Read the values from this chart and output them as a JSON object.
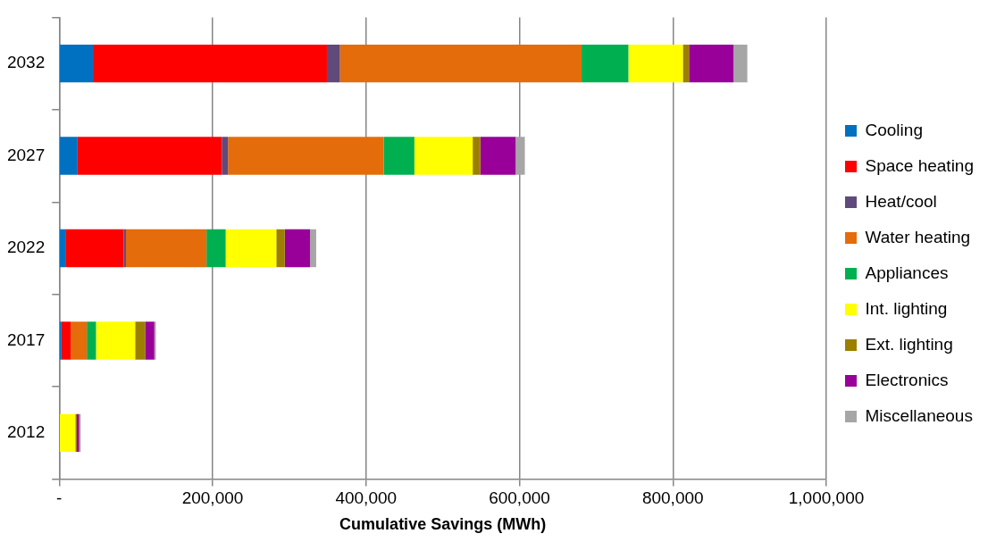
{
  "chart_data": {
    "type": "bar",
    "orientation": "horizontal",
    "stacked": true,
    "xlabel": "Cumulative Savings (MWh)",
    "categories": [
      "2032",
      "2027",
      "2022",
      "2017",
      "2012"
    ],
    "series": [
      {
        "name": "Cooling",
        "color": "#0070c0",
        "values": [
          44000,
          24000,
          8000,
          3000,
          0
        ]
      },
      {
        "name": "Space heating",
        "color": "#ff0000",
        "values": [
          305000,
          188000,
          76000,
          12000,
          0
        ]
      },
      {
        "name": "Heat/cool",
        "color": "#604a7b",
        "values": [
          17000,
          8000,
          3000,
          0,
          0
        ]
      },
      {
        "name": "Water heating",
        "color": "#e46c0a",
        "values": [
          315000,
          203000,
          105000,
          21000,
          0
        ]
      },
      {
        "name": "Appliances",
        "color": "#00b050",
        "values": [
          61000,
          40000,
          25000,
          12000,
          0
        ]
      },
      {
        "name": "Int. lighting",
        "color": "#ffff00",
        "values": [
          71000,
          76000,
          66000,
          51000,
          21000
        ]
      },
      {
        "name": "Ext. lighting",
        "color": "#9c7f00",
        "values": [
          8000,
          10000,
          11000,
          13000,
          2000
        ]
      },
      {
        "name": "Electronics",
        "color": "#990099",
        "values": [
          58000,
          46000,
          33000,
          12000,
          3000
        ]
      },
      {
        "name": "Miscellaneous",
        "color": "#a6a6a6",
        "values": [
          18000,
          12000,
          8000,
          2000,
          2000
        ]
      }
    ],
    "xlim": [
      0,
      1000000
    ],
    "xticks": [
      {
        "value": 0,
        "label": "-"
      },
      {
        "value": 200000,
        "label": "200,000"
      },
      {
        "value": 400000,
        "label": "400,000"
      },
      {
        "value": 600000,
        "label": "600,000"
      },
      {
        "value": 800000,
        "label": "800,000"
      },
      {
        "value": 1000000,
        "label": "1,000,000"
      }
    ],
    "grid": "x",
    "legend": "right"
  }
}
